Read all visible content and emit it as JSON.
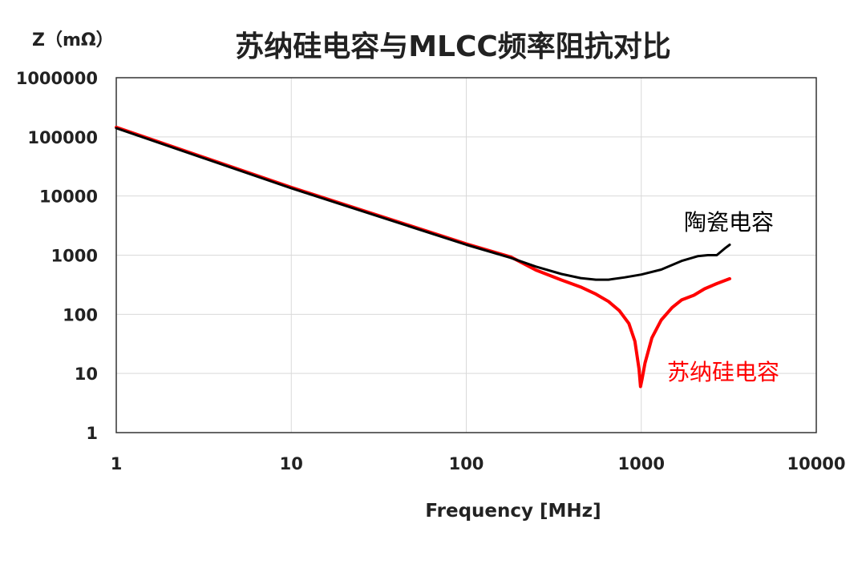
{
  "chart_data": {
    "type": "line",
    "title": "苏纳硅电容与MLCC频率阻抗对比",
    "xlabel": "Frequency [MHz]",
    "ylabel": "Z（mΩ）",
    "x_scale": "log",
    "y_scale": "log",
    "xlim": [
      1,
      10000
    ],
    "ylim": [
      1,
      1000000
    ],
    "x_ticks": [
      {
        "value": 1,
        "label": "1"
      },
      {
        "value": 10,
        "label": "10"
      },
      {
        "value": 100,
        "label": "100"
      },
      {
        "value": 1000,
        "label": "1000"
      },
      {
        "value": 10000,
        "label": "10000"
      }
    ],
    "y_ticks": [
      {
        "value": 1,
        "label": "1"
      },
      {
        "value": 10,
        "label": "10"
      },
      {
        "value": 100,
        "label": "100"
      },
      {
        "value": 1000,
        "label": "1000"
      },
      {
        "value": 10000,
        "label": "10000"
      },
      {
        "value": 100000,
        "label": "100000"
      },
      {
        "value": 1000000,
        "label": "1000000"
      }
    ],
    "grid": true,
    "series": [
      {
        "name": "陶瓷电容",
        "color": "#000000",
        "label_position": "upper-right",
        "points": [
          [
            1,
            140000
          ],
          [
            10,
            13500
          ],
          [
            100,
            1500
          ],
          [
            180,
            900
          ],
          [
            250,
            640
          ],
          [
            350,
            480
          ],
          [
            450,
            410
          ],
          [
            550,
            385
          ],
          [
            650,
            385
          ],
          [
            800,
            420
          ],
          [
            1000,
            470
          ],
          [
            1300,
            570
          ],
          [
            1700,
            800
          ],
          [
            2100,
            960
          ],
          [
            2400,
            1000
          ],
          [
            2700,
            1000
          ],
          [
            3000,
            1300
          ],
          [
            3200,
            1500
          ]
        ]
      },
      {
        "name": "苏纳硅电容",
        "color": "#ff0000",
        "label_position": "lower-right",
        "points": [
          [
            1,
            145000
          ],
          [
            10,
            14000
          ],
          [
            100,
            1550
          ],
          [
            180,
            930
          ],
          [
            250,
            560
          ],
          [
            350,
            380
          ],
          [
            450,
            290
          ],
          [
            550,
            220
          ],
          [
            650,
            165
          ],
          [
            750,
            115
          ],
          [
            850,
            70
          ],
          [
            920,
            35
          ],
          [
            970,
            12
          ],
          [
            990,
            6
          ],
          [
            1010,
            8
          ],
          [
            1050,
            15
          ],
          [
            1150,
            40
          ],
          [
            1300,
            80
          ],
          [
            1500,
            130
          ],
          [
            1700,
            175
          ],
          [
            2000,
            210
          ],
          [
            2300,
            270
          ],
          [
            2700,
            330
          ],
          [
            3200,
            400
          ]
        ]
      }
    ]
  }
}
